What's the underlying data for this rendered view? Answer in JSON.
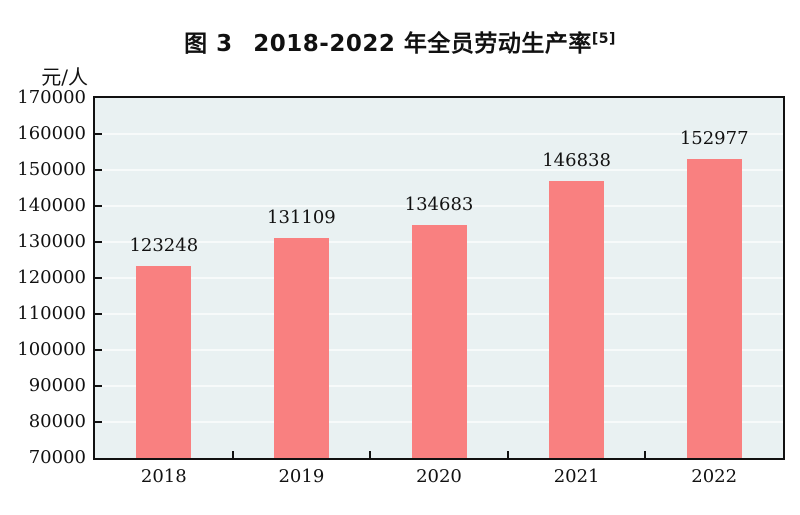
{
  "title": {
    "prefix": "图 3",
    "text": "2018-2022 年全员劳动生产率",
    "superscript": "[5]"
  },
  "chart_data": {
    "type": "bar",
    "title": "图 3 2018-2022 年全员劳动生产率[5]",
    "ylabel": "元/人",
    "xlabel": "",
    "categories": [
      "2018",
      "2019",
      "2020",
      "2021",
      "2022"
    ],
    "values": [
      123248,
      131109,
      134683,
      146838,
      152977
    ],
    "value_labels": [
      "123248",
      "131109",
      "134683",
      "146838",
      "152977"
    ],
    "ylim": [
      70000,
      170000
    ],
    "ytick_step": 10000,
    "ytick_labels": [
      "70000",
      "80000",
      "90000",
      "100000",
      "110000",
      "120000",
      "130000",
      "140000",
      "150000",
      "160000",
      "170000"
    ],
    "grid": true,
    "legend": false,
    "colors": {
      "bar": "#f98080",
      "plot_background": "#e9f1f2",
      "gridline": "#f7fafa",
      "axis": "#111111",
      "text": "#111111",
      "page_background": "#ffffff"
    }
  }
}
